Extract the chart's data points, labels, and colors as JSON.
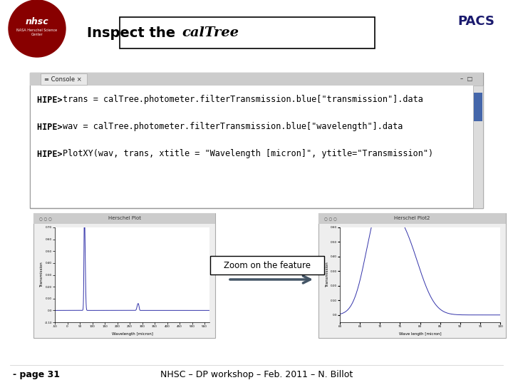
{
  "slide_bg": "#ffffff",
  "title_box_color": "#ffffff",
  "title_box_edge": "#000000",
  "console_lines": [
    [
      "HIPE> ",
      "trans = calTree.photometer.filterTransmission.blue[\"transmission\"].data"
    ],
    [
      "HIPE> ",
      "wav = calTree.photometer.filterTransmission.blue[\"wavelength\"].data"
    ],
    [
      "HIPE> ",
      "PlotXY(wav, trans, xtitle = \"Wavelength [micron]\", ytitle=\"Transmission\")"
    ]
  ],
  "zoom_label": "Zoom on the feature",
  "footer_left": "- page 31",
  "footer_center": "NHSC – DP workshop – Feb. 2011 – N. Billot",
  "plot1_xlabel": "Wavelength [micron]",
  "plot1_ylabel": "Transmission",
  "plot1_xlim": [
    -50,
    570
  ],
  "plot1_ylim": [
    -0.1,
    0.7
  ],
  "plot2_xlabel": "Wave length [micron]",
  "plot2_ylabel": "Transmission",
  "plot2_xlim": [
    60,
    100
  ],
  "plot2_ylim": [
    -0.05,
    0.6
  ]
}
